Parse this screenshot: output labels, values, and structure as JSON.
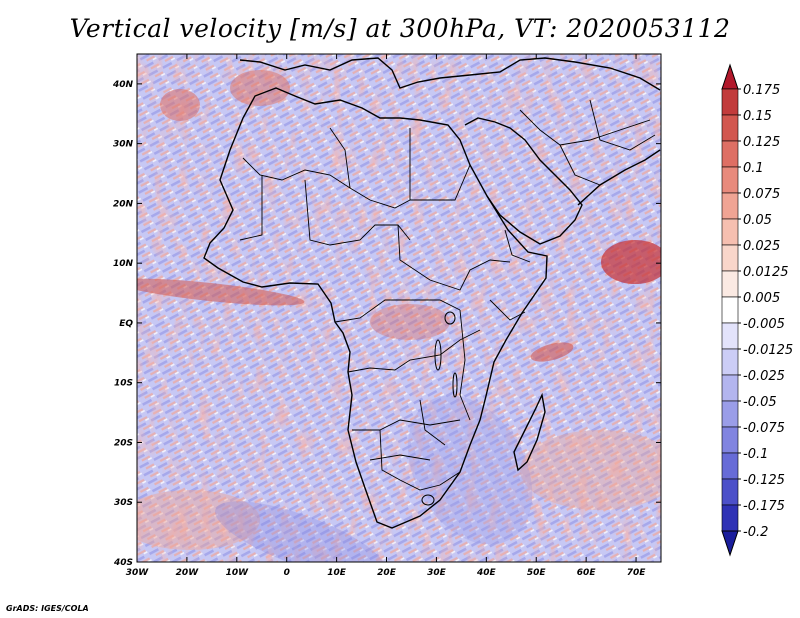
{
  "title": "Vertical velocity [m/s] at 300hPa, VT: 2020053112",
  "credit": "GrADS: IGES/COLA",
  "map": {
    "lon_range": [
      -30,
      75
    ],
    "lat_range": [
      -40,
      45
    ],
    "x_ticks": [
      "30W",
      "20W",
      "10W",
      "0",
      "10E",
      "20E",
      "30E",
      "40E",
      "50E",
      "60E",
      "70E"
    ],
    "x_tick_values": [
      -30,
      -20,
      -10,
      0,
      10,
      20,
      30,
      40,
      50,
      60,
      70
    ],
    "y_ticks": [
      "40S",
      "30S",
      "20S",
      "10S",
      "EQ",
      "10N",
      "20N",
      "30N",
      "40N"
    ],
    "y_tick_values": [
      -40,
      -30,
      -20,
      -10,
      0,
      10,
      20,
      30,
      40
    ]
  },
  "colorbar": {
    "labels": [
      "0.175",
      "0.15",
      "0.125",
      "0.1",
      "0.075",
      "0.05",
      "0.025",
      "0.0125",
      "0.005",
      "-0.005",
      "-0.0125",
      "-0.025",
      "-0.05",
      "-0.075",
      "-0.1",
      "-0.125",
      "-0.175",
      "-0.2"
    ],
    "colors": [
      "#b2182b",
      "#c23b3b",
      "#d2574f",
      "#de6f64",
      "#e88a7c",
      "#f0a494",
      "#f6bfb0",
      "#f9d6ca",
      "#fbeae3",
      "#ffffff",
      "#e3e3fb",
      "#cccdf6",
      "#b3b5ef",
      "#9a9de8",
      "#8184e0",
      "#676bd7",
      "#4c50c9",
      "#2f32b5",
      "#1a1d9c"
    ]
  }
}
